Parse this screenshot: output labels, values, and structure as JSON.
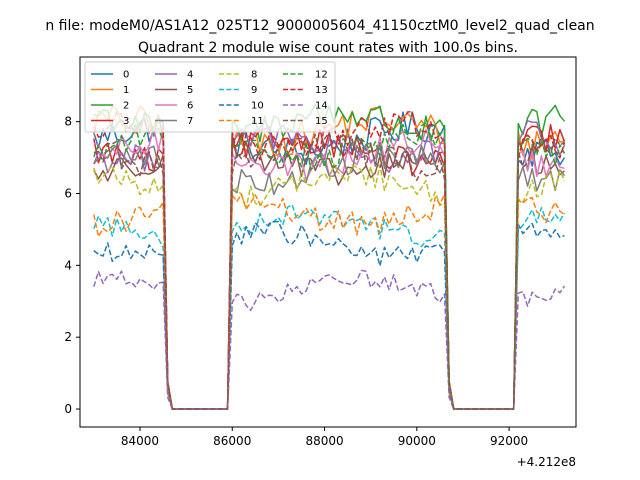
{
  "chart_data": {
    "type": "line",
    "suptitle": "n file: modeM0/AS1A12_025T12_9000005604_41150cztM0_level2_quad_clean",
    "title": "Quadrant 2 module wise count rates with 100.0s bins.",
    "xlabel": "",
    "ylabel": "",
    "x_offset_label": "+4.212e8",
    "xlim": [
      82700,
      93450
    ],
    "ylim": [
      -0.5,
      9.8
    ],
    "x_ticks": [
      84000,
      86000,
      88000,
      90000,
      92000
    ],
    "x_tick_labels": [
      "84000",
      "86000",
      "88000",
      "90000",
      "92000"
    ],
    "y_ticks": [
      0,
      2,
      4,
      6,
      8
    ],
    "y_tick_labels": [
      "0",
      "2",
      "4",
      "6",
      "8"
    ],
    "grid": false,
    "legend_position": "top-left",
    "legend_columns": 4,
    "x_start": 83000,
    "x_step": 100,
    "segments": [
      {
        "x_from": 83000,
        "x_to": 84500,
        "state": "on"
      },
      {
        "x_from": 84600,
        "x_to": 84600,
        "state": "transition",
        "factor": 0.1
      },
      {
        "x_from": 84700,
        "x_to": 85900,
        "state": "off"
      },
      {
        "x_from": 86000,
        "x_to": 90600,
        "state": "on"
      },
      {
        "x_from": 90700,
        "x_to": 90700,
        "state": "transition",
        "factor": 0.1
      },
      {
        "x_from": 90800,
        "x_to": 92100,
        "state": "off"
      },
      {
        "x_from": 92200,
        "x_to": 93200,
        "state": "on"
      }
    ],
    "series": [
      {
        "name": "0",
        "color": "#1f77b4",
        "dash": "solid",
        "mean": 7.5,
        "noise": 0.45
      },
      {
        "name": "1",
        "color": "#ff7f0e",
        "dash": "solid",
        "mean": 7.7,
        "noise": 0.45
      },
      {
        "name": "2",
        "color": "#2ca02c",
        "dash": "solid",
        "mean": 7.9,
        "noise": 0.45
      },
      {
        "name": "3",
        "color": "#d62728",
        "dash": "solid",
        "mean": 7.2,
        "noise": 0.4
      },
      {
        "name": "4",
        "color": "#9467bd",
        "dash": "solid",
        "mean": 7.3,
        "noise": 0.4
      },
      {
        "name": "5",
        "color": "#8c564b",
        "dash": "solid",
        "mean": 6.9,
        "noise": 0.4
      },
      {
        "name": "6",
        "color": "#e377c2",
        "dash": "solid",
        "mean": 7.1,
        "noise": 0.4
      },
      {
        "name": "7",
        "color": "#7f7f7f",
        "dash": "solid",
        "mean": 6.7,
        "noise": 0.4
      },
      {
        "name": "8",
        "color": "#bcbd22",
        "dash": "dashed",
        "mean": 6.2,
        "noise": 0.35
      },
      {
        "name": "9",
        "color": "#17becf",
        "dash": "dashed",
        "mean": 5.1,
        "noise": 0.3
      },
      {
        "name": "10",
        "color": "#1f77b4",
        "dash": "dashed",
        "mean": 4.6,
        "noise": 0.3
      },
      {
        "name": "11",
        "color": "#ff7f0e",
        "dash": "dashed",
        "mean": 5.5,
        "noise": 0.35
      },
      {
        "name": "12",
        "color": "#2ca02c",
        "dash": "dashed",
        "mean": 7.4,
        "noise": 0.4
      },
      {
        "name": "13",
        "color": "#d62728",
        "dash": "dashed",
        "mean": 7.6,
        "noise": 0.4
      },
      {
        "name": "14",
        "color": "#9467bd",
        "dash": "dashed",
        "mean": 3.3,
        "noise": 0.25
      },
      {
        "name": "15",
        "color": "#8c564b",
        "dash": "dashed",
        "mean": 7.0,
        "noise": 0.4
      }
    ]
  }
}
